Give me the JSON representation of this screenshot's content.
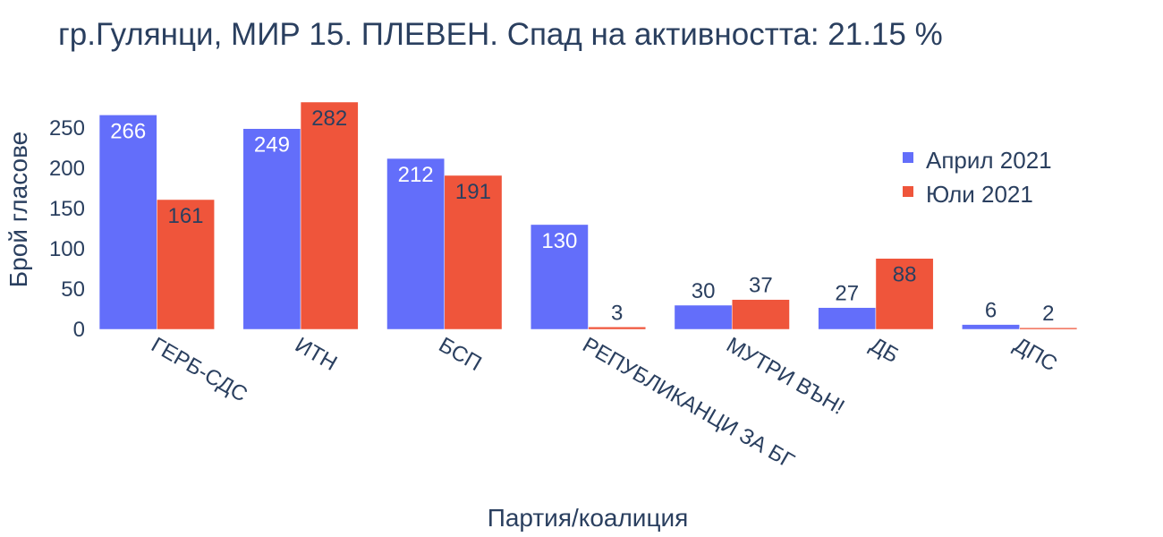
{
  "chart_data": {
    "type": "bar",
    "title": "гр.Гулянци, МИР 15. ПЛЕВЕН. Спад на активността: 21.15 %",
    "xlabel": "Партия/коалиция",
    "ylabel": "Брой гласове",
    "categories": [
      "ГЕРБ-СДС",
      "ИТН",
      "БСП",
      "РЕПУБЛИКАНЦИ ЗА БГ",
      "МУТРИ ВЪН!",
      "ДБ",
      "ДПС"
    ],
    "series": [
      {
        "name": "Април 2021",
        "color": "#636efa",
        "values": [
          266,
          249,
          212,
          130,
          30,
          27,
          6
        ]
      },
      {
        "name": "Юли 2021",
        "color": "#ef553b",
        "values": [
          161,
          282,
          191,
          3,
          37,
          88,
          2
        ]
      }
    ],
    "ylim": [
      0,
      282
    ],
    "yticks": [
      0,
      50,
      100,
      150,
      200,
      250
    ],
    "legend": "top-right",
    "grid": false
  }
}
